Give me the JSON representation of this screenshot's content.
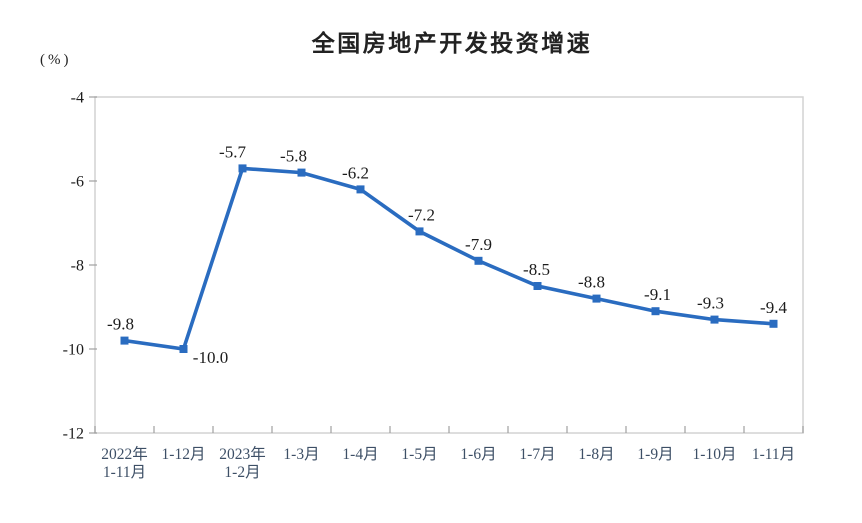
{
  "page": {
    "background": "#ffffff"
  },
  "chart_data": {
    "type": "line",
    "title": "全国房地产开发投资增速",
    "ylabel": "(%)",
    "xlabel": "",
    "legend": null,
    "grid": false,
    "categories": [
      "2022年\n1-11月",
      "1-12月",
      "2023年\n1-2月",
      "1-3月",
      "1-4月",
      "1-5月",
      "1-6月",
      "1-7月",
      "1-8月",
      "1-9月",
      "1-10月",
      "1-11月"
    ],
    "values": [
      -9.8,
      -10.0,
      -5.7,
      -5.8,
      -6.2,
      -7.2,
      -7.9,
      -8.5,
      -8.8,
      -9.1,
      -9.3,
      -9.4
    ],
    "point_labels": [
      "-9.8",
      "-10.0",
      "-5.7",
      "-5.8",
      "-6.2",
      "-7.2",
      "-7.9",
      "-8.5",
      "-8.8",
      "-9.1",
      "-9.3",
      "-9.4"
    ],
    "yticks": [
      -4,
      -6,
      -8,
      -10,
      -12
    ],
    "ylim": [
      -12,
      -4
    ],
    "marker": "square",
    "colors": {
      "line": "#2a6cc0",
      "marker": "#2a6cc0",
      "point_label_text": "#1c1c1c",
      "ytick_text": "#1c1c1c",
      "xtick_text": "#3d4f66",
      "plot_border": "#d2d2d2",
      "tick_mark": "#9f9f9f",
      "title_text": "#222222"
    }
  }
}
